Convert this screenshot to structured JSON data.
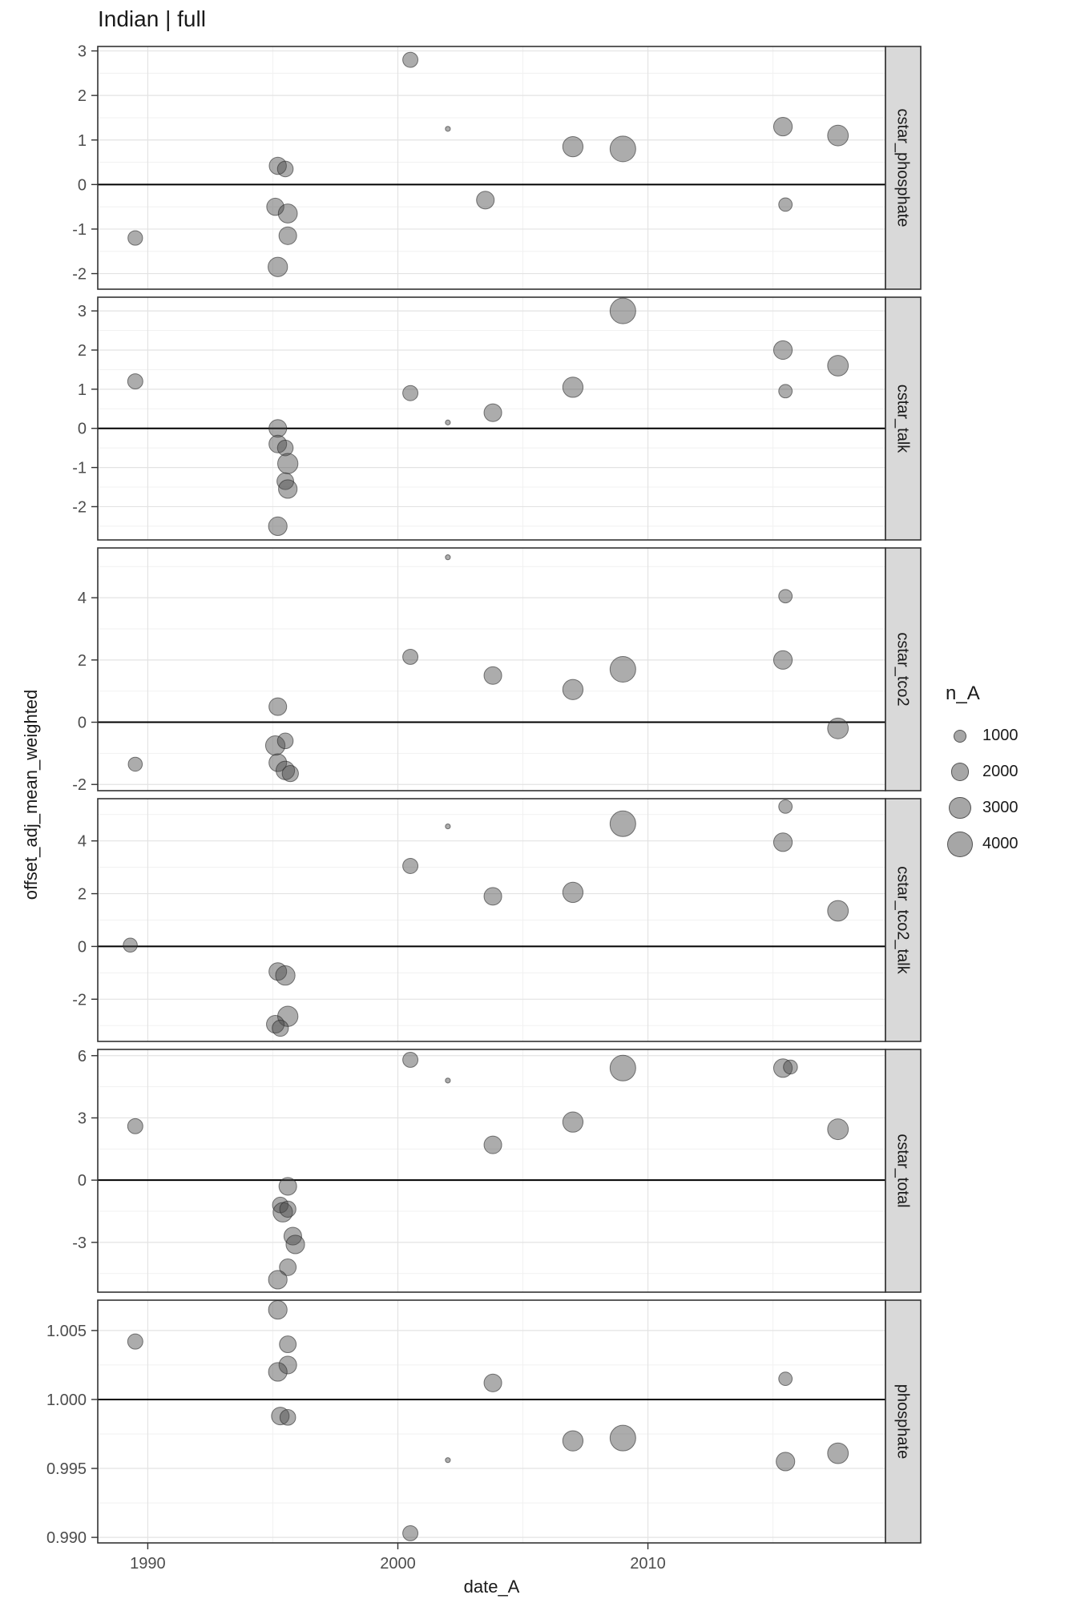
{
  "title": "Indian | full",
  "axes": {
    "x_title": "date_A",
    "y_title": "offset_adj_mean_weighted"
  },
  "legend": {
    "title": "n_A",
    "items": [
      "1000",
      "2000",
      "3000",
      "4000"
    ],
    "values": [
      1000,
      2000,
      3000,
      4000
    ]
  },
  "style": {
    "point_fill": "rgba(70,70,70,0.45)",
    "point_stroke": "rgba(40,40,40,0.6)",
    "strip_fill": "#d9d9d9",
    "panel_border": "#333333",
    "grid_major": "#e3e3e3",
    "grid_minor": "#f1f1f1",
    "ref_line": "#000000"
  },
  "chart_data": {
    "type": "scatter",
    "title": "Indian | full",
    "xlabel": "date_A",
    "ylabel": "offset_adj_mean_weighted",
    "size_variable": "n_A",
    "legend_position": "right",
    "grid": true,
    "x_domain": [
      1988.0,
      2019.5
    ],
    "x_ticks": [
      1990,
      2000,
      2010
    ],
    "x_tick_labels": [
      "1990",
      "2000",
      "2010"
    ],
    "size_scale": {
      "legend_values": [
        1000,
        2000,
        3000,
        4000
      ],
      "radius_per_sqrt_n": 0.253
    },
    "point_format": [
      "date_A",
      "offset_adj_mean_weighted",
      "n_A"
    ],
    "facets": [
      {
        "label": "cstar_phosphate",
        "y_domain": [
          -2.35,
          3.1
        ],
        "y_ticks": [
          -2,
          -1,
          0,
          1,
          2,
          3
        ],
        "y_tick_labels": [
          "-2",
          "-1",
          "0",
          "1",
          "2",
          "3"
        ],
        "ref_line": 0,
        "points": [
          [
            1989.5,
            -1.2,
            1300
          ],
          [
            1995.2,
            0.42,
            1800
          ],
          [
            1995.5,
            0.35,
            1500
          ],
          [
            1995.1,
            -0.5,
            1800
          ],
          [
            1995.6,
            -0.65,
            2200
          ],
          [
            1995.6,
            -1.15,
            1900
          ],
          [
            1995.2,
            -1.85,
            2300
          ],
          [
            2000.5,
            2.8,
            1400
          ],
          [
            2002,
            1.25,
            150
          ],
          [
            2003.5,
            -0.35,
            1900
          ],
          [
            2007,
            0.85,
            2500
          ],
          [
            2009,
            0.8,
            4000
          ],
          [
            2015.4,
            1.3,
            2100
          ],
          [
            2015.5,
            -0.45,
            1100
          ],
          [
            2017.6,
            1.1,
            2600
          ]
        ]
      },
      {
        "label": "cstar_talk",
        "y_domain": [
          -2.85,
          3.35
        ],
        "y_ticks": [
          -2,
          -1,
          0,
          1,
          2,
          3
        ],
        "y_tick_labels": [
          "-2",
          "-1",
          "0",
          "1",
          "2",
          "3"
        ],
        "ref_line": 0,
        "points": [
          [
            1989.5,
            1.2,
            1400
          ],
          [
            1995.2,
            0.0,
            1900
          ],
          [
            1995.2,
            -0.4,
            1900
          ],
          [
            1995.5,
            -0.5,
            1500
          ],
          [
            1995.6,
            -0.9,
            2500
          ],
          [
            1995.5,
            -1.35,
            1700
          ],
          [
            1995.6,
            -1.55,
            2100
          ],
          [
            1995.2,
            -2.5,
            2100
          ],
          [
            2000.5,
            0.9,
            1400
          ],
          [
            2002,
            0.15,
            150
          ],
          [
            2003.8,
            0.4,
            1900
          ],
          [
            2007,
            1.05,
            2500
          ],
          [
            2009,
            3.0,
            4000
          ],
          [
            2015.4,
            2.0,
            2100
          ],
          [
            2015.5,
            0.95,
            1100
          ],
          [
            2017.6,
            1.6,
            2600
          ]
        ]
      },
      {
        "label": "cstar_tco2",
        "y_domain": [
          -2.2,
          5.6
        ],
        "y_ticks": [
          -2,
          0,
          2,
          4
        ],
        "y_tick_labels": [
          "-2",
          "0",
          "2",
          "4"
        ],
        "ref_line": 0,
        "points": [
          [
            1989.5,
            -1.35,
            1200
          ],
          [
            1995.2,
            0.5,
            1900
          ],
          [
            1995.1,
            -0.75,
            2300
          ],
          [
            1995.5,
            -0.6,
            1500
          ],
          [
            1995.2,
            -1.3,
            1900
          ],
          [
            1995.5,
            -1.55,
            2100
          ],
          [
            1995.7,
            -1.65,
            1600
          ],
          [
            2000.5,
            2.1,
            1400
          ],
          [
            2002,
            5.3,
            150
          ],
          [
            2003.8,
            1.5,
            1900
          ],
          [
            2007,
            1.05,
            2500
          ],
          [
            2009,
            1.7,
            4000
          ],
          [
            2015.5,
            4.05,
            1100
          ],
          [
            2015.4,
            2.0,
            2100
          ],
          [
            2017.6,
            -0.2,
            2600
          ]
        ]
      },
      {
        "label": "cstar_tco2_talk",
        "y_domain": [
          -3.6,
          5.6
        ],
        "y_ticks": [
          -2,
          0,
          2,
          4
        ],
        "y_tick_labels": [
          "-2",
          "0",
          "2",
          "4"
        ],
        "ref_line": 0,
        "points": [
          [
            1989.3,
            0.05,
            1200
          ],
          [
            1995.2,
            -0.95,
            1900
          ],
          [
            1995.5,
            -1.1,
            2300
          ],
          [
            1995.6,
            -2.65,
            2500
          ],
          [
            1995.1,
            -2.95,
            1900
          ],
          [
            1995.3,
            -3.1,
            1600
          ],
          [
            2000.5,
            3.05,
            1400
          ],
          [
            2002,
            4.55,
            150
          ],
          [
            2003.8,
            1.9,
            1900
          ],
          [
            2007,
            2.05,
            2500
          ],
          [
            2009,
            4.65,
            4000
          ],
          [
            2015.5,
            5.3,
            1100
          ],
          [
            2015.4,
            3.95,
            2100
          ],
          [
            2017.6,
            1.35,
            2600
          ]
        ]
      },
      {
        "label": "cstar_total",
        "y_domain": [
          -5.4,
          6.3
        ],
        "y_ticks": [
          -3,
          0,
          3,
          6
        ],
        "y_tick_labels": [
          "-3",
          "0",
          "3",
          "6"
        ],
        "ref_line": 0,
        "points": [
          [
            1989.5,
            2.6,
            1400
          ],
          [
            1995.6,
            -0.3,
            1900
          ],
          [
            1995.3,
            -1.2,
            1500
          ],
          [
            1995.4,
            -1.55,
            2300
          ],
          [
            1995.6,
            -1.4,
            1600
          ],
          [
            1995.8,
            -2.7,
            1900
          ],
          [
            1995.9,
            -3.1,
            2100
          ],
          [
            1995.6,
            -4.2,
            1700
          ],
          [
            1995.2,
            -4.8,
            2100
          ],
          [
            2000.5,
            5.8,
            1400
          ],
          [
            2002,
            4.8,
            150
          ],
          [
            2003.8,
            1.7,
            1900
          ],
          [
            2007,
            2.8,
            2500
          ],
          [
            2009,
            5.4,
            4000
          ],
          [
            2015.4,
            5.4,
            2100
          ],
          [
            2015.7,
            5.45,
            1200
          ],
          [
            2017.6,
            2.45,
            2600
          ]
        ]
      },
      {
        "label": "phosphate",
        "y_domain": [
          0.9896,
          1.0072
        ],
        "y_ticks": [
          0.99,
          0.995,
          1.0,
          1.005
        ],
        "y_tick_labels": [
          "0.990",
          "0.995",
          "1.000",
          "1.005"
        ],
        "ref_line": 1.0,
        "points": [
          [
            1989.5,
            1.0042,
            1400
          ],
          [
            1995.2,
            1.0065,
            2100
          ],
          [
            1995.6,
            1.004,
            1700
          ],
          [
            1995.6,
            1.0025,
            1900
          ],
          [
            1995.2,
            1.002,
            2100
          ],
          [
            1995.3,
            0.9988,
            1900
          ],
          [
            1995.6,
            0.9987,
            1500
          ],
          [
            2000.5,
            0.9903,
            1400
          ],
          [
            2002,
            0.9956,
            150
          ],
          [
            2003.8,
            1.0012,
            1900
          ],
          [
            2007,
            0.997,
            2500
          ],
          [
            2009,
            0.9972,
            4000
          ],
          [
            2015.5,
            1.0015,
            1100
          ],
          [
            2015.5,
            0.9955,
            2100
          ],
          [
            2017.6,
            0.9961,
            2600
          ]
        ]
      }
    ]
  }
}
